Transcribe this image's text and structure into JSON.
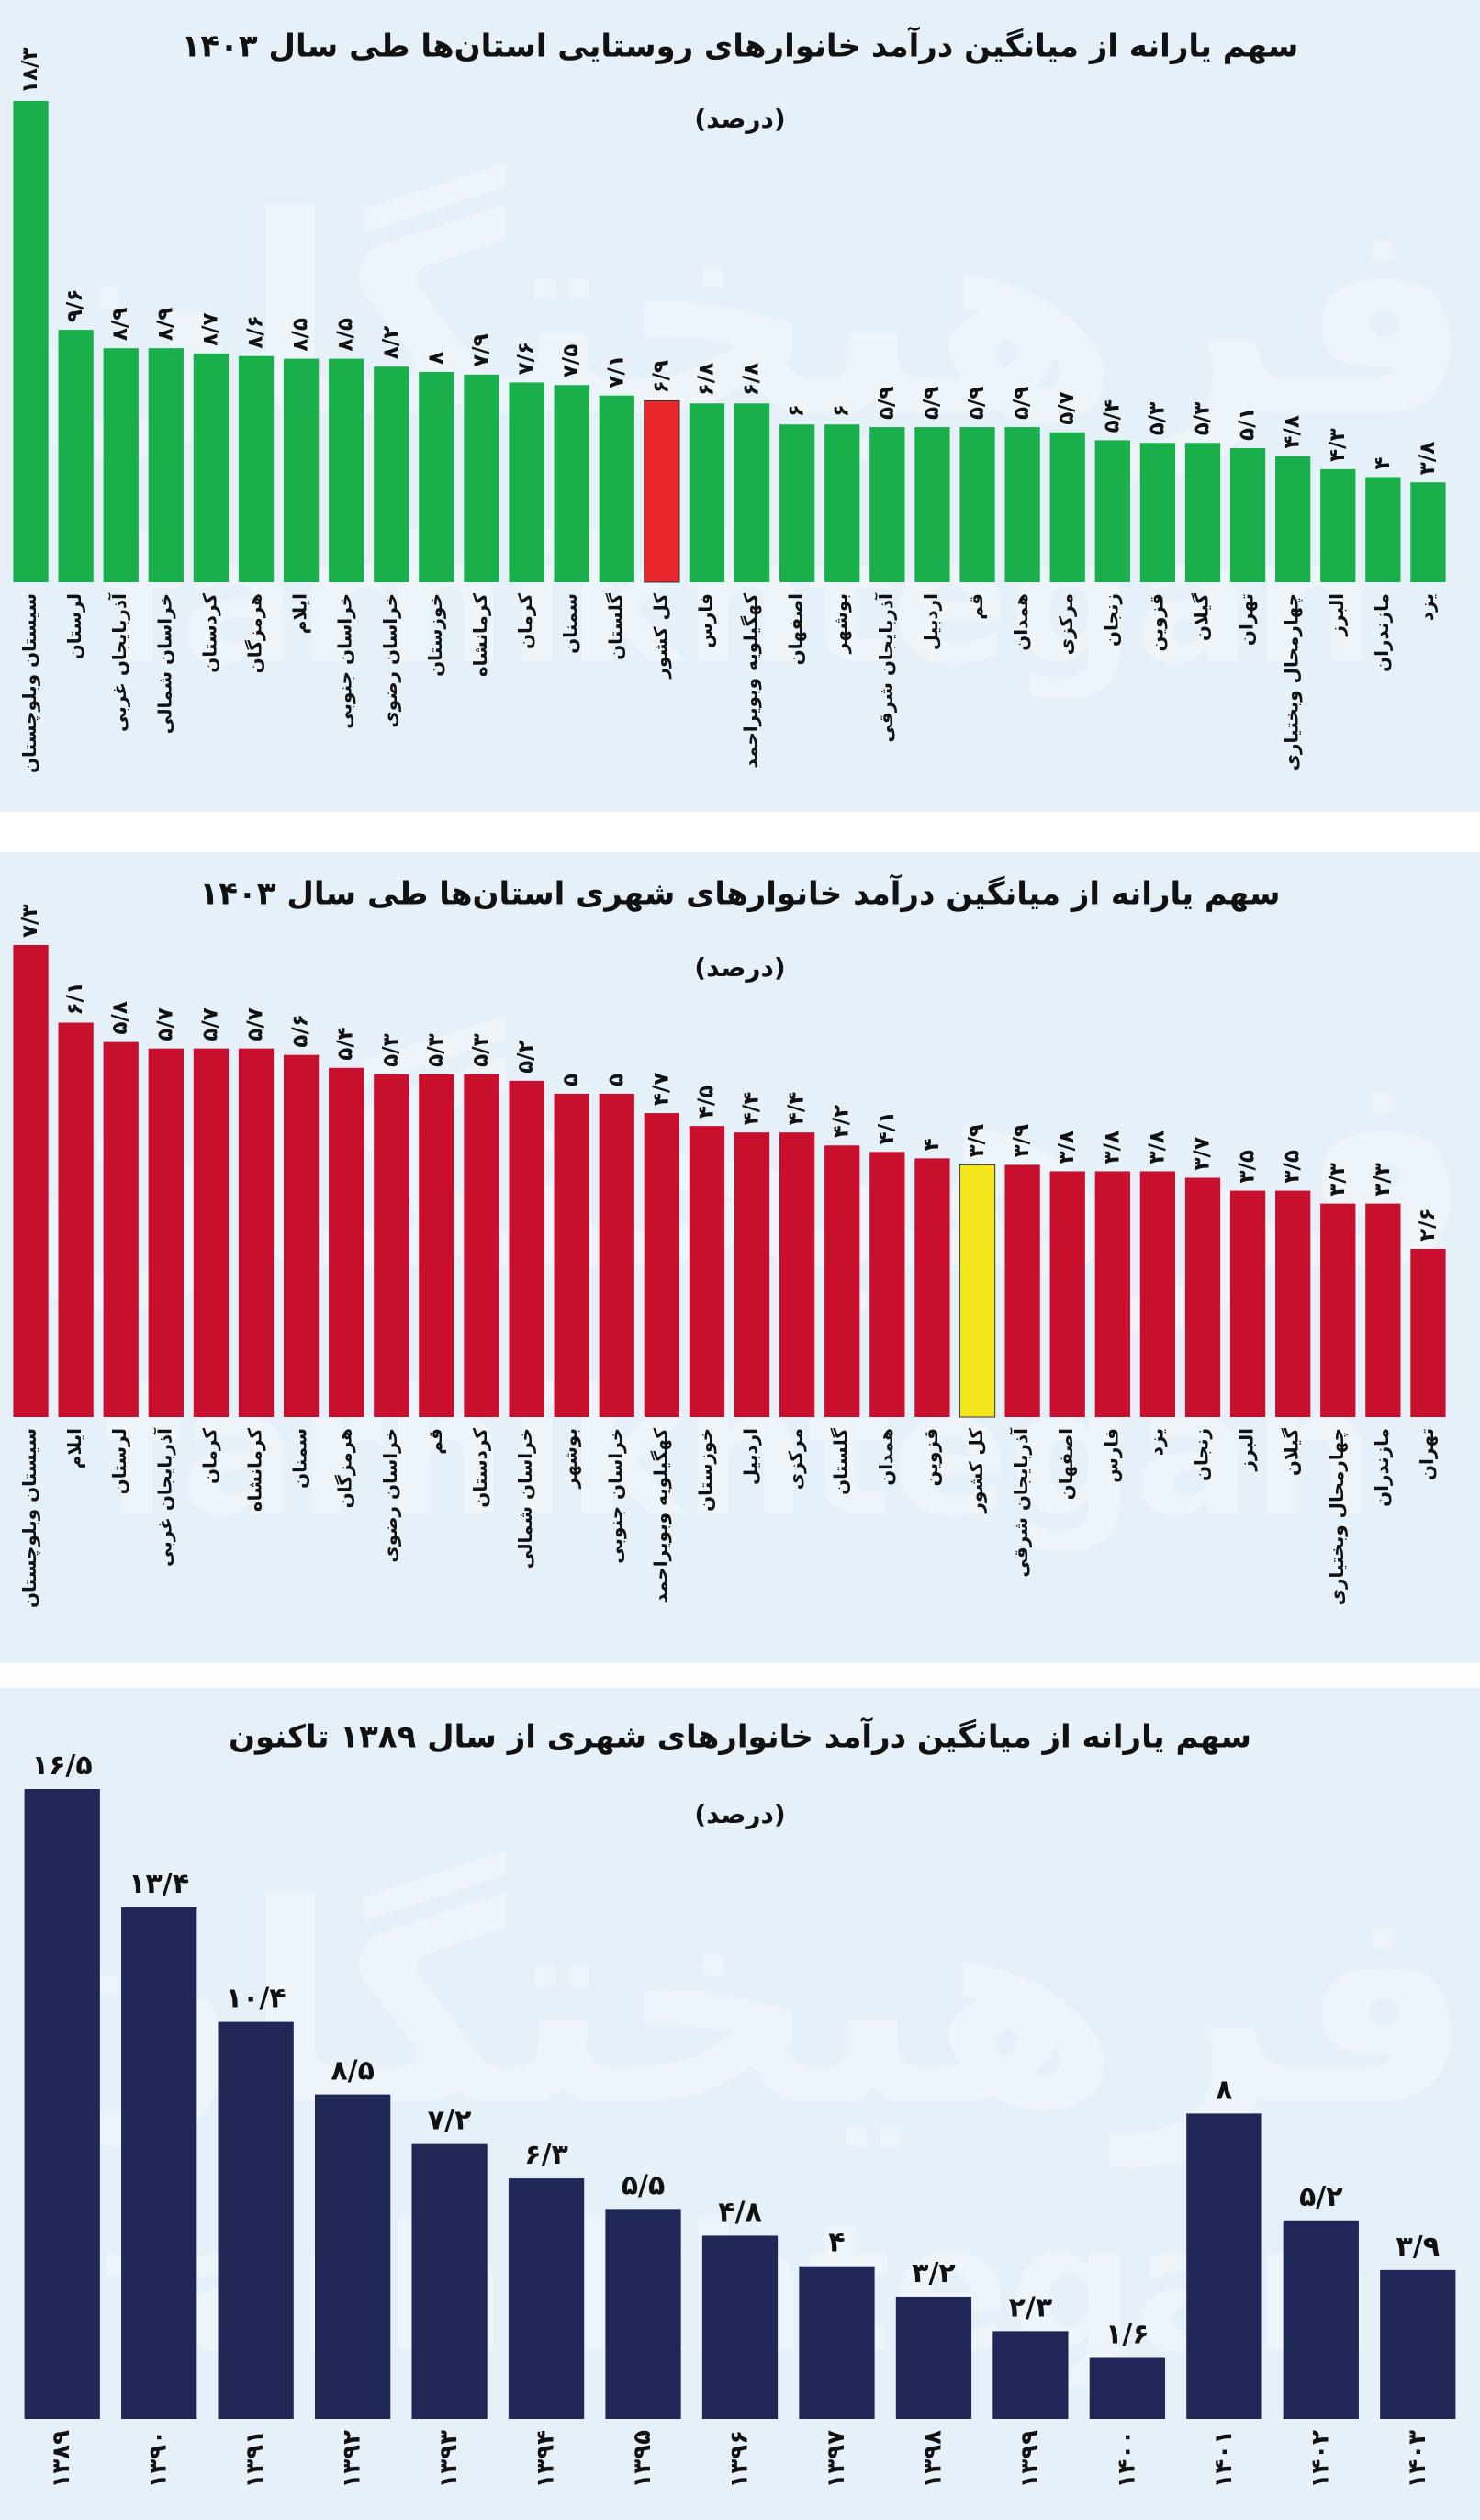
{
  "watermark": {
    "fa": "فرهیختگان",
    "en": "farhikhtegan"
  },
  "chart_data": [
    {
      "type": "bar",
      "title": "سهم یارانه از میانگین درآمد خانوارهای روستایی استان‌ها طی سال ۱۴۰۳",
      "subtitle": "(درصد)",
      "categories": [
        "سیستان وبلوچستان",
        "لرستان",
        "آذربایجان غربی",
        "خراسان شمالی",
        "کردستان",
        "هرمزگان",
        "ایلام",
        "خراسان جنوبی",
        "خراسان رضوی",
        "خوزستان",
        "کرمانشاه",
        "کرمان",
        "سمنان",
        "گلستان",
        "کل کشور",
        "فارس",
        "کهگیلویه وبویراحمد",
        "اصفهان",
        "بوشهر",
        "آذربایجان شرقی",
        "اردبیل",
        "قم",
        "همدان",
        "مرکزی",
        "زنجان",
        "قزوین",
        "گیلان",
        "تهران",
        "چهارمحال وبختیاری",
        "البرز",
        "مازندران",
        "یزد"
      ],
      "values": [
        18.3,
        9.6,
        8.9,
        8.9,
        8.7,
        8.6,
        8.5,
        8.5,
        8.2,
        8,
        7.9,
        7.6,
        7.5,
        7.1,
        6.9,
        6.8,
        6.8,
        6,
        6,
        5.9,
        5.9,
        5.9,
        5.9,
        5.7,
        5.4,
        5.3,
        5.3,
        5.1,
        4.8,
        4.3,
        4,
        3.8
      ],
      "value_labels": [
        "۱۸/۳",
        "۹/۶",
        "۸/۹",
        "۸/۹",
        "۸/۷",
        "۸/۶",
        "۸/۵",
        "۸/۵",
        "۸/۲",
        "۸",
        "۷/۹",
        "۷/۶",
        "۷/۵",
        "۷/۱",
        "۶/۹",
        "۶/۸",
        "۶/۸",
        "۶",
        "۶",
        "۵/۹",
        "۵/۹",
        "۵/۹",
        "۵/۹",
        "۵/۷",
        "۵/۴",
        "۵/۳",
        "۵/۳",
        "۵/۱",
        "۴/۸",
        "۴/۳",
        "۴",
        "۳/۸"
      ],
      "colors": [
        "#19b04b",
        "#19b04b",
        "#19b04b",
        "#19b04b",
        "#19b04b",
        "#19b04b",
        "#19b04b",
        "#19b04b",
        "#19b04b",
        "#19b04b",
        "#19b04b",
        "#19b04b",
        "#19b04b",
        "#19b04b",
        "#e8262b",
        "#19b04b",
        "#19b04b",
        "#19b04b",
        "#19b04b",
        "#19b04b",
        "#19b04b",
        "#19b04b",
        "#19b04b",
        "#19b04b",
        "#19b04b",
        "#19b04b",
        "#19b04b",
        "#19b04b",
        "#19b04b",
        "#19b04b",
        "#19b04b",
        "#19b04b"
      ]
    },
    {
      "type": "bar",
      "title": "سهم یارانه از میانگین درآمد خانوارهای شهری استان‌ها طی سال ۱۴۰۳",
      "subtitle": "(درصد)",
      "categories": [
        "سیستان وبلوچستان",
        "ایلام",
        "لرستان",
        "آذربایجان غربی",
        "کرمان",
        "کرمانشاه",
        "سمنان",
        "هرمزگان",
        "خراسان رضوی",
        "قم",
        "کردستان",
        "خراسان شمالی",
        "بوشهر",
        "خراسان جنوبی",
        "کهگیلویه وبویراحمد",
        "خوزستان",
        "اردبیل",
        "مرکزی",
        "گلستان",
        "همدان",
        "قزوین",
        "کل کشور",
        "آذربایجان شرقی",
        "اصفهان",
        "فارس",
        "یزد",
        "زنجان",
        "البرز",
        "گیلان",
        "چهارمحال وبختیاری",
        "مازندران",
        "تهران"
      ],
      "values": [
        7.3,
        6.1,
        5.8,
        5.7,
        5.7,
        5.7,
        5.6,
        5.4,
        5.3,
        5.3,
        5.3,
        5.2,
        5,
        5,
        4.7,
        4.5,
        4.4,
        4.4,
        4.2,
        4.1,
        4,
        3.9,
        3.9,
        3.8,
        3.8,
        3.8,
        3.7,
        3.5,
        3.5,
        3.3,
        3.3,
        2.6
      ],
      "value_labels": [
        "۷/۳",
        "۶/۱",
        "۵/۸",
        "۵/۷",
        "۵/۷",
        "۵/۷",
        "۵/۶",
        "۵/۴",
        "۵/۳",
        "۵/۳",
        "۵/۳",
        "۵/۲",
        "۵",
        "۵",
        "۴/۷",
        "۴/۵",
        "۴/۴",
        "۴/۴",
        "۴/۲",
        "۴/۱",
        "۴",
        "۳/۹",
        "۳/۹",
        "۳/۸",
        "۳/۸",
        "۳/۸",
        "۳/۷",
        "۳/۵",
        "۳/۵",
        "۳/۳",
        "۳/۳",
        "۲/۶"
      ],
      "colors": [
        "#c8102e",
        "#c8102e",
        "#c8102e",
        "#c8102e",
        "#c8102e",
        "#c8102e",
        "#c8102e",
        "#c8102e",
        "#c8102e",
        "#c8102e",
        "#c8102e",
        "#c8102e",
        "#c8102e",
        "#c8102e",
        "#c8102e",
        "#c8102e",
        "#c8102e",
        "#c8102e",
        "#c8102e",
        "#c8102e",
        "#c8102e",
        "#f3e61a",
        "#c8102e",
        "#c8102e",
        "#c8102e",
        "#c8102e",
        "#c8102e",
        "#c8102e",
        "#c8102e",
        "#c8102e",
        "#c8102e",
        "#c8102e"
      ]
    },
    {
      "type": "bar",
      "title": "سهم یارانه از میانگین درآمد خانوارهای شهری از سال ۱۳۸۹ تاکنون",
      "subtitle": "(درصد)",
      "categories": [
        "۱۳۸۹",
        "۱۳۹۰",
        "۱۳۹۱",
        "۱۳۹۲",
        "۱۳۹۳",
        "۱۳۹۴",
        "۱۳۹۵",
        "۱۳۹۶",
        "۱۳۹۷",
        "۱۳۹۸",
        "۱۳۹۹",
        "۱۴۰۰",
        "۱۴۰۱",
        "۱۴۰۲",
        "۱۴۰۳"
      ],
      "values": [
        16.5,
        13.4,
        10.4,
        8.5,
        7.2,
        6.3,
        5.5,
        4.8,
        4,
        3.2,
        2.3,
        1.6,
        8,
        5.2,
        3.9
      ],
      "value_labels": [
        "۱۶/۵",
        "۱۳/۴",
        "۱۰/۴",
        "۸/۵",
        "۷/۲",
        "۶/۳",
        "۵/۵",
        "۴/۸",
        "۴",
        "۳/۲",
        "۲/۳",
        "۱/۶",
        "۸",
        "۵/۲",
        "۳/۹"
      ],
      "color": "#1f2757"
    }
  ]
}
